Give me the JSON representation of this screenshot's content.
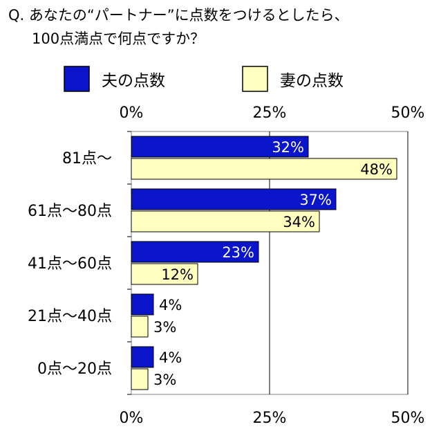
{
  "title": {
    "line1": "Q. あなたの“パートナー”に点数をつけるとしたら、",
    "line2": "100点満点で何点ですか？"
  },
  "chart_data": {
    "type": "bar",
    "orientation": "horizontal",
    "categories": [
      "81点～",
      "61点～80点",
      "41点～60点",
      "21点～40点",
      "0点～20点"
    ],
    "series": [
      {
        "name": "夫の点数",
        "values": [
          32,
          37,
          23,
          4,
          4
        ],
        "labels": [
          "32%",
          "37%",
          "23%",
          "4%",
          "4%"
        ],
        "color": "#0a14c8"
      },
      {
        "name": "妻の点数",
        "values": [
          48,
          34,
          12,
          3,
          3
        ],
        "labels": [
          "48%",
          "34%",
          "12%",
          "3%",
          "3%"
        ],
        "color": "#ffffc0"
      }
    ],
    "xlim": [
      0,
      50
    ],
    "ticks": [
      0,
      25,
      50
    ],
    "tick_labels": [
      "0%",
      "25%",
      "50%"
    ],
    "grid": true,
    "legend_position": "top"
  }
}
